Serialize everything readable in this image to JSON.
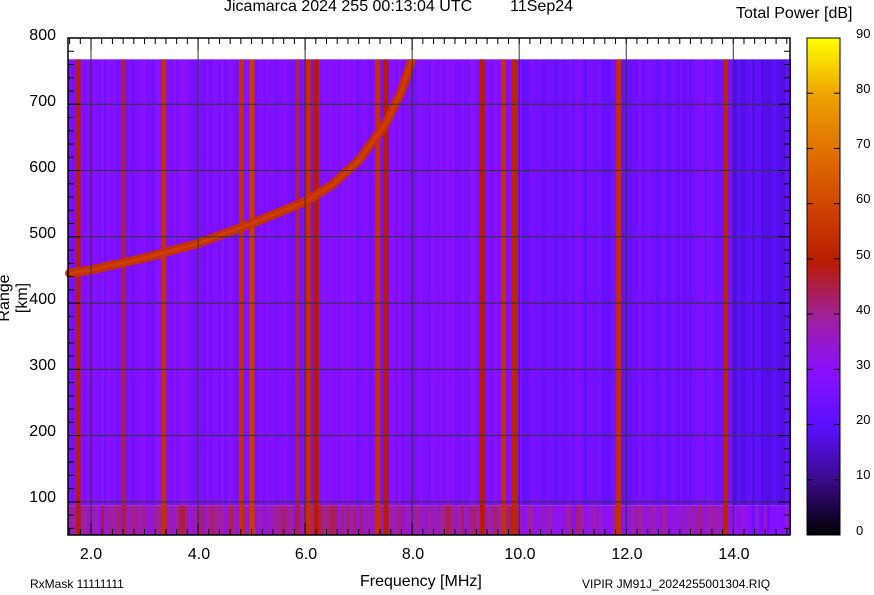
{
  "chart_data": {
    "type": "heatmap",
    "subtype": "ionogram",
    "title": "Jicamarca 2024 255 00:13:04 UTC",
    "date_label": "11Sep24",
    "xlabel": "Frequency [MHz]",
    "ylabel": "Range [km]",
    "xlim": [
      1.57,
      15.06
    ],
    "ylim": [
      50,
      800
    ],
    "x_ticks": [
      2.0,
      4.0,
      6.0,
      8.0,
      10.0,
      12.0,
      14.0
    ],
    "x_tick_labels": [
      "2.0",
      "4.0",
      "6.0",
      "8.0",
      "10.0",
      "12.0",
      "14.0"
    ],
    "y_ticks": [
      100,
      200,
      300,
      400,
      500,
      600,
      700,
      800
    ],
    "y_tick_labels": [
      "100",
      "200",
      "300",
      "400",
      "500",
      "600",
      "700",
      "800"
    ],
    "grid": true,
    "data_range_top_km": 768,
    "colorbar": {
      "title": "Total Power [dB]",
      "range": [
        0,
        90
      ],
      "ticks": [
        0,
        10,
        20,
        30,
        40,
        50,
        60,
        70,
        80,
        90
      ],
      "colormap": [
        "#000000",
        "#3a0a8a",
        "#5a10ff",
        "#8a10ff",
        "#a0209a",
        "#b81c00",
        "#d04400",
        "#e07000",
        "#eda000",
        "#ffff00"
      ]
    },
    "background_level_db": 28,
    "trace": {
      "name": "F-region echo trace",
      "level_db": 55,
      "points": [
        {
          "freq_mhz": 1.6,
          "range_km": 445
        },
        {
          "freq_mhz": 2.0,
          "range_km": 450
        },
        {
          "freq_mhz": 3.0,
          "range_km": 468
        },
        {
          "freq_mhz": 4.0,
          "range_km": 490
        },
        {
          "freq_mhz": 5.0,
          "range_km": 520
        },
        {
          "freq_mhz": 6.0,
          "range_km": 553
        },
        {
          "freq_mhz": 6.5,
          "range_km": 578
        },
        {
          "freq_mhz": 7.0,
          "range_km": 615
        },
        {
          "freq_mhz": 7.5,
          "range_km": 670
        },
        {
          "freq_mhz": 7.8,
          "range_km": 720
        },
        {
          "freq_mhz": 8.0,
          "range_km": 768
        }
      ]
    },
    "interference_bands_mhz": [
      {
        "freq": 1.75,
        "level_db": 48
      },
      {
        "freq": 2.6,
        "level_db": 45
      },
      {
        "freq": 3.35,
        "level_db": 55
      },
      {
        "freq": 4.8,
        "level_db": 55
      },
      {
        "freq": 5.0,
        "level_db": 58
      },
      {
        "freq": 5.85,
        "level_db": 45
      },
      {
        "freq": 6.05,
        "level_db": 55
      },
      {
        "freq": 6.2,
        "level_db": 50
      },
      {
        "freq": 7.35,
        "level_db": 55
      },
      {
        "freq": 7.5,
        "level_db": 50
      },
      {
        "freq": 9.3,
        "level_db": 50
      },
      {
        "freq": 9.7,
        "level_db": 55
      },
      {
        "freq": 9.9,
        "level_db": 52
      },
      {
        "freq": 11.85,
        "level_db": 55
      },
      {
        "freq": 13.85,
        "level_db": 52
      }
    ],
    "low_range_noise_band_km": [
      50,
      95
    ]
  },
  "header": {
    "title": "Jicamarca 2024 255 00:13:04 UTC",
    "date": "11Sep24",
    "colorbar_title": "Total Power [dB]"
  },
  "footer": {
    "rxmask": "RxMask 11111111",
    "xlabel": "Frequency [MHz]",
    "file": "VIPIR  JM91J_2024255001304.RIQ"
  },
  "axes": {
    "ylabel": "Range [km]",
    "y_ticks": [
      "800",
      "700",
      "600",
      "500",
      "400",
      "300",
      "200",
      "100"
    ],
    "x_ticks": [
      "2.0",
      "4.0",
      "6.0",
      "8.0",
      "10.0",
      "12.0",
      "14.0"
    ],
    "cb_ticks": [
      "90",
      "80",
      "70",
      "60",
      "50",
      "40",
      "30",
      "20",
      "10",
      "0"
    ]
  }
}
